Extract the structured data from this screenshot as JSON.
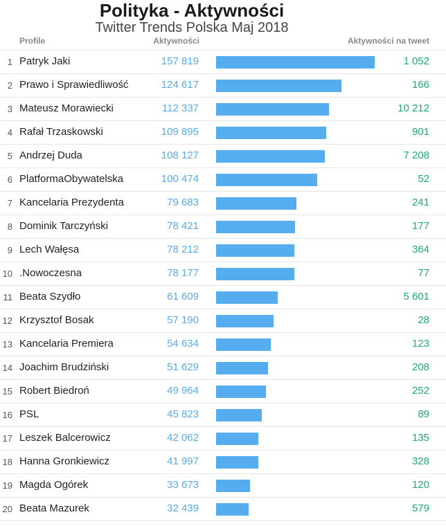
{
  "title": "Polityka - Aktywności",
  "subtitle": "Twitter Trends Polska Maj 2018",
  "headers": {
    "profile": "Profile",
    "activities": "Aktywności",
    "per_tweet": "Aktywności na tweet"
  },
  "colors": {
    "bar": "#55acee",
    "activities_text": "#5aa9e6",
    "per_tweet_text": "#1eaa6e"
  },
  "chart_data": {
    "type": "bar",
    "orientation": "horizontal",
    "title": "Polityka - Aktywności",
    "subtitle": "Twitter Trends Polska Maj 2018",
    "rows": [
      {
        "rank": "1",
        "profile": "Patryk Jaki",
        "activities": 157819,
        "activities_label": "157 819",
        "per_tweet": "1 052"
      },
      {
        "rank": "2",
        "profile": "Prawo i Sprawiedliwość",
        "activities": 124617,
        "activities_label": "124 617",
        "per_tweet": "166"
      },
      {
        "rank": "3",
        "profile": "Mateusz Morawiecki",
        "activities": 112337,
        "activities_label": "112 337",
        "per_tweet": "10 212"
      },
      {
        "rank": "4",
        "profile": "Rafał Trzaskowski",
        "activities": 109895,
        "activities_label": "109 895",
        "per_tweet": "901"
      },
      {
        "rank": "5",
        "profile": "Andrzej Duda",
        "activities": 108127,
        "activities_label": "108 127",
        "per_tweet": "7 208"
      },
      {
        "rank": "6",
        "profile": "PlatformaObywatelska",
        "activities": 100474,
        "activities_label": "100 474",
        "per_tweet": "52"
      },
      {
        "rank": "7",
        "profile": "Kancelaria Prezydenta",
        "activities": 79683,
        "activities_label": "79 683",
        "per_tweet": "241"
      },
      {
        "rank": "8",
        "profile": "Dominik Tarczyński",
        "activities": 78421,
        "activities_label": "78 421",
        "per_tweet": "177"
      },
      {
        "rank": "9",
        "profile": "Lech Wałęsa",
        "activities": 78212,
        "activities_label": "78 212",
        "per_tweet": "364"
      },
      {
        "rank": "10",
        "profile": ".Nowoczesna",
        "activities": 78177,
        "activities_label": "78 177",
        "per_tweet": "77"
      },
      {
        "rank": "11",
        "profile": "Beata Szydło",
        "activities": 61609,
        "activities_label": "61 609",
        "per_tweet": "5 601"
      },
      {
        "rank": "12",
        "profile": "Krzysztof Bosak",
        "activities": 57190,
        "activities_label": "57 190",
        "per_tweet": "28"
      },
      {
        "rank": "13",
        "profile": "Kancelaria Premiera",
        "activities": 54634,
        "activities_label": "54 634",
        "per_tweet": "123"
      },
      {
        "rank": "14",
        "profile": "Joachim Brudziński",
        "activities": 51629,
        "activities_label": "51 629",
        "per_tweet": "208"
      },
      {
        "rank": "15",
        "profile": "Robert Biedroń",
        "activities": 49964,
        "activities_label": "49 964",
        "per_tweet": "252"
      },
      {
        "rank": "16",
        "profile": "PSL",
        "activities": 45823,
        "activities_label": "45 823",
        "per_tweet": "89"
      },
      {
        "rank": "17",
        "profile": "Leszek Balcerowicz",
        "activities": 42062,
        "activities_label": "42 062",
        "per_tweet": "135"
      },
      {
        "rank": "18",
        "profile": "Hanna Gronkiewicz",
        "activities": 41997,
        "activities_label": "41 997",
        "per_tweet": "328"
      },
      {
        "rank": "19",
        "profile": "Magda Ogórek",
        "activities": 33673,
        "activities_label": "33 673",
        "per_tweet": "120"
      },
      {
        "rank": "20",
        "profile": "Beata Mazurek",
        "activities": 32439,
        "activities_label": "32 439",
        "per_tweet": "579"
      }
    ]
  }
}
